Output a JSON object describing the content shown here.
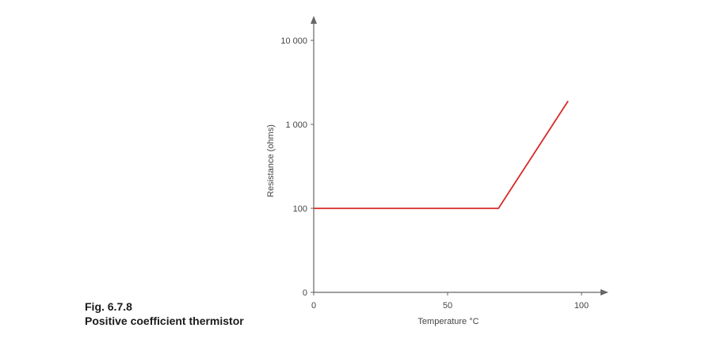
{
  "caption": {
    "figure_number": "Fig. 6.7.8",
    "title": "Positive coefficient thermistor"
  },
  "chart_data": {
    "type": "line",
    "title": "",
    "xlabel": "Temperature °C",
    "ylabel": "Resistance (ohms)",
    "x_ticks": [
      {
        "value": 0,
        "label": "0"
      },
      {
        "value": 50,
        "label": "50"
      },
      {
        "value": 100,
        "label": "100"
      }
    ],
    "y_ticks": [
      {
        "level": 0,
        "label": "0"
      },
      {
        "level": 1,
        "label": "100"
      },
      {
        "level": 2,
        "label": "1 000"
      },
      {
        "level": 3,
        "label": "10 000"
      }
    ],
    "y_scale": "log",
    "xlim": [
      0,
      100
    ],
    "grid": false,
    "series": [
      {
        "color": "#d62a2a",
        "x": [
          0,
          69,
          95
        ],
        "y": [
          100,
          100,
          1900
        ]
      }
    ],
    "axis_color": "#666666"
  }
}
